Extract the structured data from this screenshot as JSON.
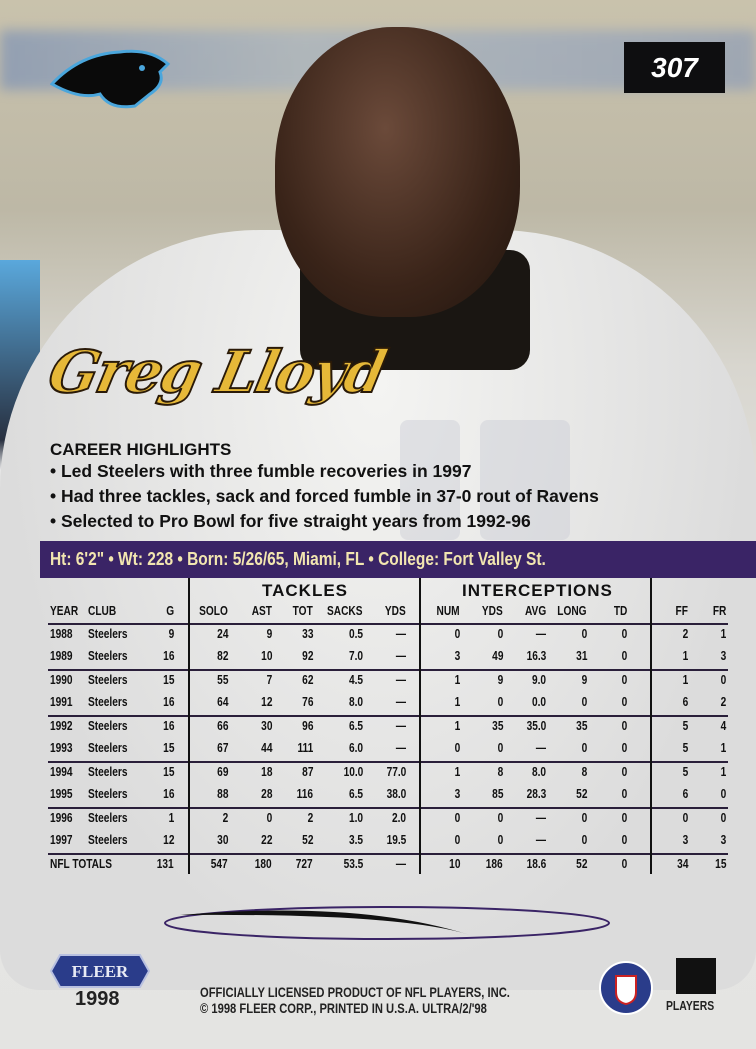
{
  "card": {
    "number": "307",
    "player_name": "Greg Lloyd",
    "team_logo": "carolina-panthers-logo",
    "accent": "#e6b838",
    "bar_color": "#3a2466"
  },
  "highlights": {
    "title": "CAREER HIGHLIGHTS",
    "items": [
      "• Led Steelers with three fumble recoveries in 1997",
      "• Had three tackles, sack and forced fumble in 37-0 rout of Ravens",
      "• Selected to Pro Bowl for five straight years from 1992-96"
    ]
  },
  "bio": "Ht: 6'2\" • Wt: 228 • Born: 5/26/65, Miami, FL • College: Fort Valley St.",
  "stats": {
    "groups": {
      "tackles": "TACKLES",
      "interceptions": "INTERCEPTIONS"
    },
    "headers": [
      "YEAR",
      "CLUB",
      "G",
      "SOLO",
      "AST",
      "TOT",
      "SACKS",
      "YDS",
      "NUM",
      "YDS",
      "AVG",
      "LONG",
      "TD",
      "FF",
      "FR"
    ],
    "rows": [
      [
        "1988",
        "Steelers",
        "9",
        "24",
        "9",
        "33",
        "0.5",
        "—",
        "0",
        "0",
        "—",
        "0",
        "0",
        "2",
        "1"
      ],
      [
        "1989",
        "Steelers",
        "16",
        "82",
        "10",
        "92",
        "7.0",
        "—",
        "3",
        "49",
        "16.3",
        "31",
        "0",
        "1",
        "3"
      ],
      [
        "1990",
        "Steelers",
        "15",
        "55",
        "7",
        "62",
        "4.5",
        "—",
        "1",
        "9",
        "9.0",
        "9",
        "0",
        "1",
        "0"
      ],
      [
        "1991",
        "Steelers",
        "16",
        "64",
        "12",
        "76",
        "8.0",
        "—",
        "1",
        "0",
        "0.0",
        "0",
        "0",
        "6",
        "2"
      ],
      [
        "1992",
        "Steelers",
        "16",
        "66",
        "30",
        "96",
        "6.5",
        "—",
        "1",
        "35",
        "35.0",
        "35",
        "0",
        "5",
        "4"
      ],
      [
        "1993",
        "Steelers",
        "15",
        "67",
        "44",
        "111",
        "6.0",
        "—",
        "0",
        "0",
        "—",
        "0",
        "0",
        "5",
        "1"
      ],
      [
        "1994",
        "Steelers",
        "15",
        "69",
        "18",
        "87",
        "10.0",
        "77.0",
        "1",
        "8",
        "8.0",
        "8",
        "0",
        "5",
        "1"
      ],
      [
        "1995",
        "Steelers",
        "16",
        "88",
        "28",
        "116",
        "6.5",
        "38.0",
        "3",
        "85",
        "28.3",
        "52",
        "0",
        "6",
        "0"
      ],
      [
        "1996",
        "Steelers",
        "1",
        "2",
        "0",
        "2",
        "1.0",
        "2.0",
        "0",
        "0",
        "—",
        "0",
        "0",
        "0",
        "0"
      ],
      [
        "1997",
        "Steelers",
        "12",
        "30",
        "22",
        "52",
        "3.5",
        "19.5",
        "0",
        "0",
        "—",
        "0",
        "0",
        "3",
        "3"
      ]
    ],
    "totals": [
      "NFL TOTALS",
      "131",
      "547",
      "180",
      "727",
      "53.5",
      "—",
      "10",
      "186",
      "18.6",
      "52",
      "0",
      "34",
      "15"
    ]
  },
  "footer": {
    "brand": "FLEER",
    "year": "1998",
    "legal_1": "OFFICIALLY LICENSED PRODUCT OF NFL PLAYERS, INC.",
    "legal_2": "© 1998 FLEER CORP., PRINTED IN U.S.A. ULTRA/2/'98",
    "players": "PLAYERS",
    "nfl_logo": "nfl-shield-logo",
    "players_logo": "nfl-players-logo"
  }
}
